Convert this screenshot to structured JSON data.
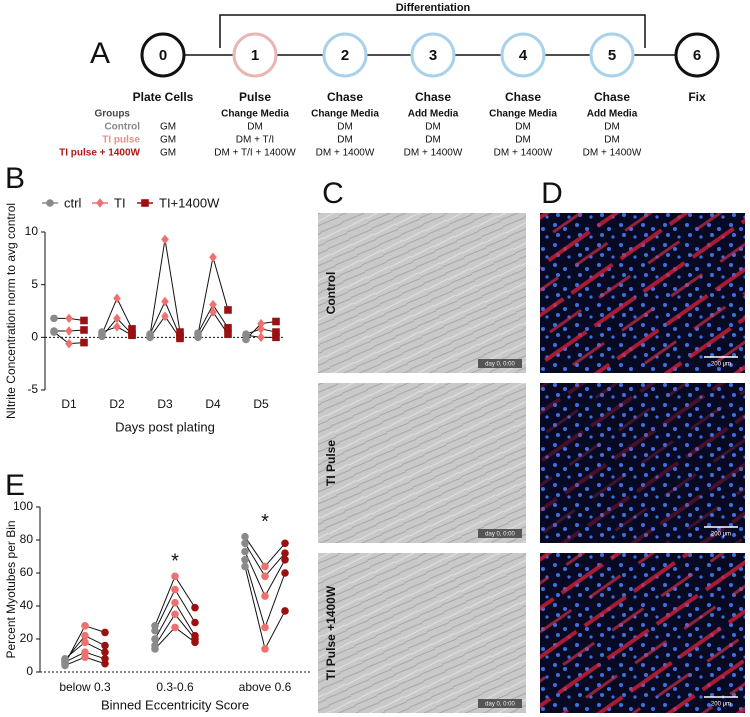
{
  "timeline": {
    "label": "A",
    "bracket_title": "Differentiation",
    "nodes": [
      {
        "number": "0",
        "step": "Plate Cells",
        "color": "#111111"
      },
      {
        "number": "1",
        "step": "Pulse",
        "action": "Change Media",
        "color": "#eab5b5"
      },
      {
        "number": "2",
        "step": "Chase",
        "action": "Change Media",
        "color": "#a8d2ec"
      },
      {
        "number": "3",
        "step": "Chase",
        "action": "Add Media",
        "color": "#a8d2ec"
      },
      {
        "number": "4",
        "step": "Chase",
        "action": "Change Media",
        "color": "#a8d2ec"
      },
      {
        "number": "5",
        "step": "Chase",
        "action": "Add Media",
        "color": "#a8d2ec"
      },
      {
        "number": "6",
        "step": "Fix",
        "color": "#111111"
      }
    ],
    "groups": {
      "header": "Groups",
      "rows": [
        {
          "name": "Control",
          "color": "#8a8a8a",
          "cells": [
            "GM",
            "DM",
            "DM",
            "DM",
            "DM",
            "DM"
          ]
        },
        {
          "name": "TI pulse",
          "color": "#f08a8a",
          "cells": [
            "GM",
            "DM + T/I",
            "DM",
            "DM",
            "DM",
            "DM"
          ]
        },
        {
          "name": "TI pulse + 1400W",
          "color": "#b01818",
          "cells": [
            "GM",
            "DM + T/I + 1400W",
            "DM + 1400W",
            "DM + 1400W",
            "DM + 1400W",
            "DM + 1400W"
          ]
        }
      ]
    }
  },
  "chart_data": [
    {
      "type": "paired-line",
      "label": "B",
      "y_label": "NItrite Concentration norm to avg control",
      "x_label": "Days post plating",
      "categories": [
        "D1",
        "D2",
        "D3",
        "D4",
        "D5"
      ],
      "ylim": [
        -5,
        10
      ],
      "yticks": [
        -5,
        0,
        5,
        10
      ],
      "zero_line": true,
      "legend": "top",
      "series": [
        {
          "name": "ctrl",
          "color": "#8a8a8a",
          "marker": "circle",
          "values": [
            [
              1.8,
              0.5,
              0.6
            ],
            [
              0.3,
              0.1,
              0.5
            ],
            [
              0.2,
              0.3,
              0.0
            ],
            [
              0.3,
              0.4,
              0.0
            ],
            [
              -0.2,
              0.3,
              0.2
            ]
          ]
        },
        {
          "name": "TI",
          "color": "#f07070",
          "marker": "diamond",
          "values": [
            [
              1.8,
              -0.6,
              0.6
            ],
            [
              3.7,
              1.8,
              1.0
            ],
            [
              9.3,
              3.4,
              2.0
            ],
            [
              7.6,
              3.1,
              2.4
            ],
            [
              1.3,
              0.8,
              0.0
            ]
          ]
        },
        {
          "name": "TI+1400W",
          "color": "#9b1111",
          "marker": "square",
          "values": [
            [
              1.6,
              -0.5,
              0.7
            ],
            [
              0.8,
              0.3,
              0.2
            ],
            [
              0.5,
              0.1,
              -0.1
            ],
            [
              2.6,
              0.9,
              0.3
            ],
            [
              1.5,
              0.5,
              0.0
            ]
          ]
        }
      ]
    },
    {
      "type": "paired-line",
      "label": "E",
      "y_label": "Percent Myotubes per Bin",
      "x_label": "Binned Eccentricity Score",
      "categories": [
        "below 0.3",
        "0.3-0.6",
        "above 0.6"
      ],
      "significance": [
        null,
        "*",
        "*"
      ],
      "ylim": [
        0,
        100
      ],
      "yticks": [
        0,
        20,
        40,
        60,
        80,
        100
      ],
      "zero_line": true,
      "series": [
        {
          "name": "ctrl",
          "color": "#8a8a8a",
          "marker": "circle",
          "values": [
            [
              5,
              7,
              8,
              6,
              4
            ],
            [
              28,
              25,
              20,
              16,
              14
            ],
            [
              82,
              78,
              73,
              68,
              64
            ]
          ]
        },
        {
          "name": "TI",
          "color": "#f07070",
          "marker": "circle",
          "values": [
            [
              28,
              22,
              18,
              12,
              9
            ],
            [
              58,
              50,
              42,
              35,
              27
            ],
            [
              64,
              58,
              46,
              27,
              14
            ]
          ]
        },
        {
          "name": "TI+1400W",
          "color": "#9b1111",
          "marker": "circle",
          "values": [
            [
              24,
              16,
              12,
              8,
              5
            ],
            [
              39,
              30,
              22,
              20,
              18
            ],
            [
              78,
              72,
              68,
              60,
              37
            ]
          ]
        }
      ]
    }
  ],
  "panel_c": {
    "label": "C",
    "rows": [
      "Control",
      "TI Pulse",
      "TI Pulse +1400W"
    ],
    "stamp": "day 0, 0:00"
  },
  "panel_d": {
    "label": "D",
    "scale": "200 μm"
  }
}
